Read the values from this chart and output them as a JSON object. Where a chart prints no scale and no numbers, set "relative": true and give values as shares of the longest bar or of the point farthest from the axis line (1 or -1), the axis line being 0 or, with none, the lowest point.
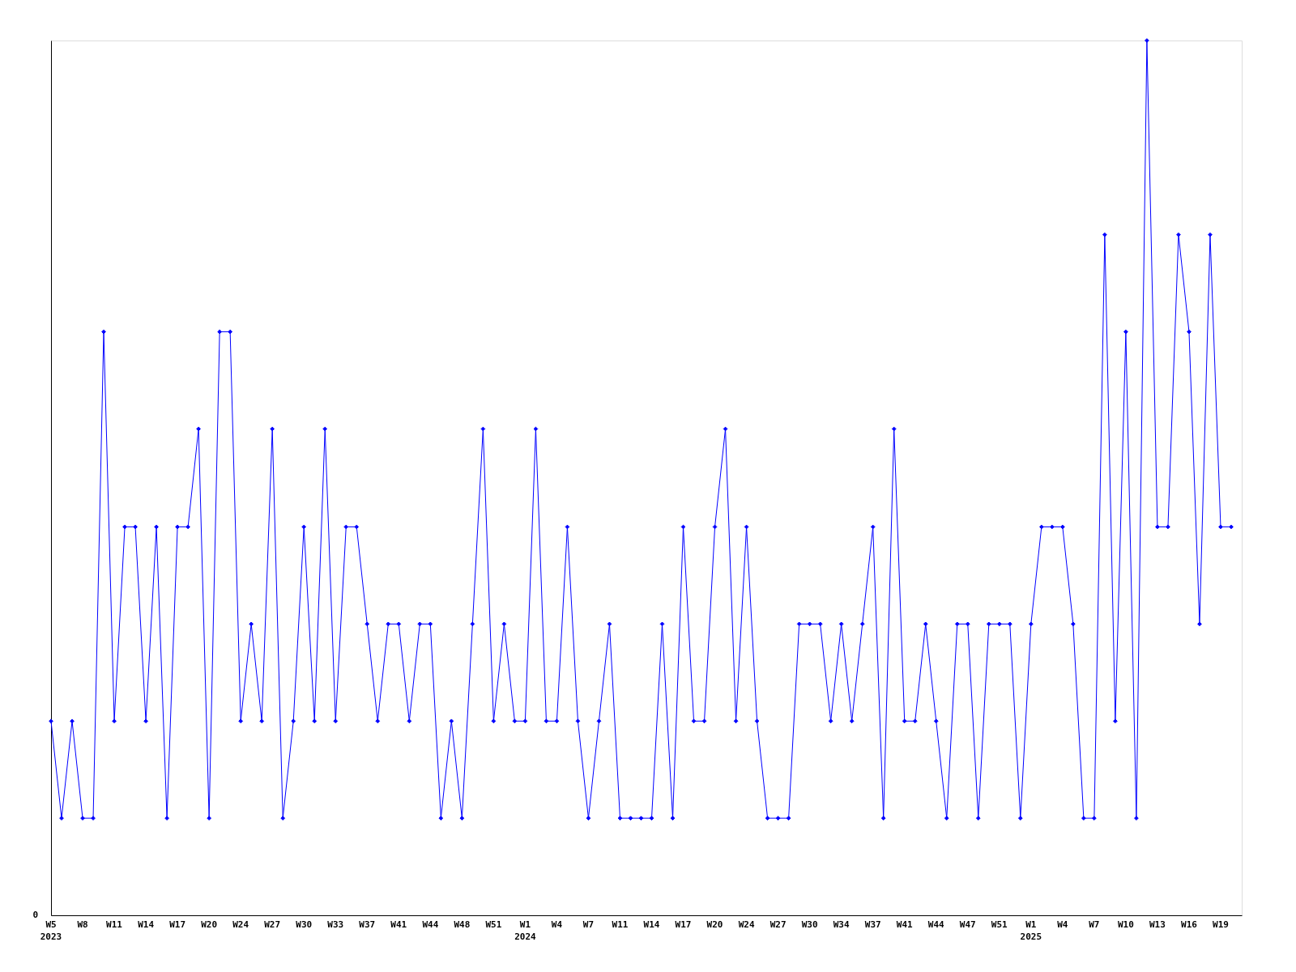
{
  "chart_data": {
    "type": "line",
    "relative": true,
    "marker": "diamond",
    "line_style": "solid",
    "grid": false,
    "legend": false,
    "annotations": [
      "0"
    ],
    "categories": [
      "W5\n2023",
      null,
      null,
      "W8",
      null,
      null,
      "W11",
      null,
      null,
      "W14",
      null,
      null,
      "W17",
      null,
      null,
      "W20",
      null,
      null,
      "W24",
      null,
      null,
      "W27",
      null,
      null,
      "W30",
      null,
      null,
      "W33",
      null,
      null,
      "W37",
      null,
      null,
      "W41",
      null,
      null,
      "W44",
      null,
      null,
      "W48",
      null,
      null,
      "W51",
      null,
      null,
      "W1\n2024",
      null,
      null,
      "W4",
      null,
      null,
      "W7",
      null,
      null,
      "W11",
      null,
      null,
      "W14",
      null,
      null,
      "W17",
      null,
      null,
      "W20",
      null,
      null,
      "W24",
      null,
      null,
      "W27",
      null,
      null,
      "W30",
      null,
      null,
      "W34",
      null,
      null,
      "W37",
      null,
      null,
      "W41",
      null,
      null,
      "W44",
      null,
      null,
      "W47",
      null,
      null,
      "W51",
      null,
      null,
      "W1\n2025",
      null,
      null,
      "W4",
      null,
      null,
      "W7",
      null,
      null,
      "W10",
      null,
      null,
      "W13",
      null,
      null,
      "W16",
      null,
      null,
      "W19",
      null
    ],
    "series": [
      {
        "color": "#0000ff",
        "values": [
          0.222,
          0.111,
          0.222,
          0.111,
          0.111,
          0.667,
          0.222,
          0.444,
          0.444,
          0.222,
          0.444,
          0.111,
          0.444,
          0.444,
          0.556,
          0.111,
          0.667,
          0.667,
          0.222,
          0.333,
          0.222,
          0.556,
          0.111,
          0.222,
          0.444,
          0.222,
          0.556,
          0.222,
          0.444,
          0.444,
          0.333,
          0.222,
          0.333,
          0.333,
          0.222,
          0.333,
          0.333,
          0.111,
          0.222,
          0.111,
          0.333,
          0.556,
          0.222,
          0.333,
          0.222,
          0.222,
          0.556,
          0.222,
          0.222,
          0.444,
          0.222,
          0.111,
          0.222,
          0.333,
          0.111,
          0.111,
          0.111,
          0.111,
          0.333,
          0.111,
          0.444,
          0.222,
          0.222,
          0.444,
          0.556,
          0.222,
          0.444,
          0.222,
          0.111,
          0.111,
          0.111,
          0.333,
          0.333,
          0.333,
          0.222,
          0.333,
          0.222,
          0.333,
          0.444,
          0.111,
          0.556,
          0.222,
          0.222,
          0.333,
          0.222,
          0.111,
          0.333,
          0.333,
          0.111,
          0.333,
          0.333,
          0.333,
          0.111,
          0.333,
          0.444,
          0.444,
          0.444,
          0.333,
          0.111,
          0.111,
          0.778,
          0.222,
          0.667,
          0.111,
          1,
          0.444,
          0.444,
          0.778,
          0.667,
          0.333,
          0.778,
          0.444,
          0.444
        ]
      }
    ]
  }
}
